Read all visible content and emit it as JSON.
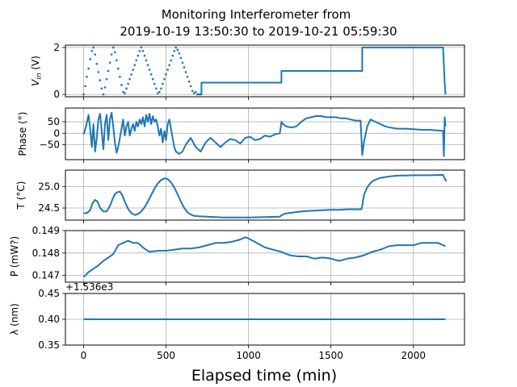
{
  "figure": {
    "title_line1": "Monitoring Interferometer from",
    "title_line2": "2019-10-19 13:50:30 to 2019-10-21 05:59:30",
    "xlabel": "Elapsed time (min)",
    "line_color": "#1f77b4",
    "grid_color": "#b0b0b0"
  },
  "chart_data": {
    "type": "line",
    "shared_x": {
      "xlim": [
        -110,
        2310
      ],
      "ticks": [
        0,
        500,
        1000,
        1500,
        2000
      ],
      "tick_labels": [
        "0",
        "500",
        "1000",
        "1500",
        "2000"
      ]
    },
    "grid": true,
    "panels": [
      {
        "id": "vin",
        "ylabel_main": "V",
        "ylabel_sub": "in",
        "ylabel_unit": " (V)",
        "ylim": [
          -0.1,
          2.1
        ],
        "yticks": [
          0,
          2
        ],
        "ytick_labels": [
          "0",
          "2"
        ],
        "style": "mixed",
        "segments": [
          {
            "style": "dots",
            "x": [
              0,
              10,
              20,
              30,
              40,
              50,
              60,
              70,
              80,
              90,
              100,
              110,
              120,
              130,
              140,
              150,
              160,
              170,
              180,
              190,
              200,
              210,
              220,
              230,
              240,
              250,
              260,
              270,
              280,
              290,
              300,
              310,
              320,
              330,
              340,
              350,
              360,
              370,
              380,
              390,
              400,
              410,
              420,
              430,
              440,
              450,
              460,
              470,
              480,
              490,
              500,
              510,
              520,
              530,
              540,
              550,
              560,
              570,
              580,
              590,
              600,
              610,
              620,
              630,
              640,
              650,
              660,
              670,
              680,
              690,
              700,
              710
            ],
            "y": [
              0,
              0.35,
              0.75,
              1.1,
              1.5,
              1.85,
              2.0,
              1.7,
              1.3,
              0.95,
              0.6,
              0.25,
              0.0,
              0.3,
              0.65,
              1.0,
              1.35,
              1.7,
              2.0,
              1.8,
              1.45,
              1.1,
              0.75,
              0.4,
              0.1,
              0.05,
              0.25,
              0.45,
              0.65,
              0.85,
              1.05,
              1.25,
              1.45,
              1.65,
              1.85,
              2.0,
              1.85,
              1.65,
              1.45,
              1.25,
              1.05,
              0.85,
              0.65,
              0.45,
              0.25,
              0.05,
              0.1,
              0.25,
              0.45,
              0.65,
              0.85,
              1.05,
              1.25,
              1.45,
              1.65,
              1.85,
              2.0,
              1.9,
              1.75,
              1.55,
              1.35,
              1.15,
              0.95,
              0.75,
              0.55,
              0.35,
              0.15,
              0.05,
              0.1,
              0.0,
              0.0,
              0.0
            ]
          },
          {
            "style": "line",
            "x": [
              710,
              715,
              715,
              1200,
              1200,
              1690,
              1690,
              2180,
              2190,
              2195
            ],
            "y": [
              0,
              0,
              0.5,
              0.5,
              1.0,
              1.0,
              2.0,
              2.0,
              0.5,
              0.0
            ]
          }
        ]
      },
      {
        "id": "phase",
        "ylabel": "Phase (°)",
        "ylim": [
          -115,
          110
        ],
        "yticks": [
          -50,
          0,
          50
        ],
        "ytick_labels": [
          "−50",
          "0",
          "50"
        ],
        "x": [
          0,
          15,
          30,
          40,
          50,
          60,
          70,
          80,
          90,
          100,
          110,
          120,
          130,
          140,
          150,
          160,
          170,
          180,
          190,
          200,
          210,
          220,
          230,
          240,
          250,
          260,
          270,
          280,
          290,
          300,
          310,
          320,
          330,
          340,
          350,
          360,
          370,
          380,
          390,
          400,
          410,
          420,
          430,
          440,
          450,
          460,
          470,
          480,
          490,
          500,
          510,
          520,
          530,
          540,
          550,
          560,
          580,
          600,
          620,
          650,
          680,
          710,
          740,
          770,
          800,
          830,
          860,
          890,
          920,
          950,
          980,
          1010,
          1040,
          1070,
          1100,
          1130,
          1160,
          1190,
          1200,
          1210,
          1230,
          1260,
          1290,
          1320,
          1350,
          1380,
          1410,
          1440,
          1470,
          1500,
          1530,
          1560,
          1590,
          1620,
          1650,
          1680,
          1690,
          1700,
          1720,
          1740,
          1770,
          1800,
          1830,
          1860,
          1900,
          1950,
          2000,
          2050,
          2100,
          2150,
          2180,
          2185,
          2190,
          2195
        ],
        "y": [
          -5,
          30,
          80,
          20,
          -60,
          40,
          -80,
          -20,
          60,
          85,
          10,
          -70,
          40,
          80,
          -30,
          60,
          90,
          30,
          -40,
          -85,
          -60,
          -20,
          20,
          60,
          -10,
          30,
          50,
          -10,
          20,
          40,
          10,
          50,
          30,
          60,
          40,
          70,
          30,
          80,
          50,
          85,
          40,
          75,
          50,
          60,
          30,
          -10,
          20,
          -40,
          10,
          -30,
          40,
          60,
          20,
          -20,
          -60,
          -80,
          -90,
          -80,
          -50,
          -20,
          -60,
          -80,
          -40,
          -20,
          -40,
          -60,
          -40,
          -25,
          -30,
          -45,
          -20,
          -15,
          -30,
          -25,
          -10,
          -15,
          -5,
          0,
          50,
          40,
          30,
          25,
          30,
          50,
          65,
          70,
          75,
          75,
          70,
          70,
          70,
          65,
          65,
          60,
          55,
          55,
          -95,
          -40,
          30,
          60,
          50,
          40,
          30,
          25,
          20,
          20,
          18,
          15,
          15,
          12,
          10,
          -100,
          70,
          30
        ]
      },
      {
        "id": "temp",
        "ylabel": "T (°C)",
        "ylim": [
          24.22,
          25.38
        ],
        "yticks": [
          24.5,
          25.0
        ],
        "ytick_labels": [
          "24.5",
          "25.0"
        ],
        "x": [
          0,
          20,
          40,
          55,
          70,
          85,
          100,
          120,
          140,
          160,
          175,
          190,
          205,
          220,
          235,
          250,
          270,
          290,
          310,
          330,
          350,
          370,
          390,
          410,
          430,
          450,
          470,
          490,
          510,
          530,
          550,
          570,
          590,
          610,
          630,
          650,
          670,
          700,
          750,
          800,
          850,
          900,
          1000,
          1100,
          1190,
          1200,
          1220,
          1260,
          1300,
          1350,
          1400,
          1450,
          1500,
          1550,
          1600,
          1650,
          1685,
          1690,
          1700,
          1720,
          1740,
          1760,
          1800,
          1850,
          1900,
          2000,
          2100,
          2180,
          2190,
          2200
        ],
        "y": [
          24.38,
          24.38,
          24.45,
          24.62,
          24.69,
          24.65,
          24.5,
          24.42,
          24.42,
          24.55,
          24.7,
          24.82,
          24.87,
          24.88,
          24.8,
          24.65,
          24.48,
          24.38,
          24.34,
          24.36,
          24.42,
          24.52,
          24.65,
          24.8,
          24.95,
          25.07,
          25.15,
          25.19,
          25.17,
          25.1,
          24.98,
          24.82,
          24.65,
          24.5,
          24.4,
          24.35,
          24.32,
          24.31,
          24.3,
          24.29,
          24.28,
          24.28,
          24.28,
          24.29,
          24.3,
          24.33,
          24.37,
          24.39,
          24.41,
          24.43,
          24.44,
          24.45,
          24.46,
          24.46,
          24.47,
          24.47,
          24.47,
          24.55,
          24.8,
          24.98,
          25.08,
          25.14,
          25.2,
          25.23,
          25.25,
          25.26,
          25.26,
          25.27,
          25.18,
          25.12
        ]
      },
      {
        "id": "power",
        "ylabel": "P (mW?)",
        "ylim": [
          0.1467,
          0.149
        ],
        "yticks": [
          0.147,
          0.148,
          0.149
        ],
        "ytick_labels": [
          "0.147",
          "0.148",
          "0.149"
        ],
        "x": [
          0,
          10,
          30,
          60,
          90,
          120,
          150,
          180,
          210,
          240,
          270,
          300,
          330,
          360,
          400,
          450,
          500,
          550,
          600,
          650,
          700,
          750,
          800,
          850,
          900,
          950,
          980,
          1000,
          1050,
          1100,
          1150,
          1200,
          1250,
          1300,
          1350,
          1400,
          1450,
          1500,
          1550,
          1600,
          1650,
          1700,
          1750,
          1800,
          1850,
          1900,
          1950,
          2000,
          2050,
          2100,
          2150,
          2180,
          2195
        ],
        "y": [
          0.14693,
          0.147,
          0.14715,
          0.1473,
          0.14745,
          0.14765,
          0.1478,
          0.14795,
          0.14835,
          0.14845,
          0.14855,
          0.14845,
          0.14845,
          0.14825,
          0.14805,
          0.1481,
          0.1481,
          0.14815,
          0.1482,
          0.1482,
          0.14825,
          0.14835,
          0.14845,
          0.14845,
          0.1485,
          0.1486,
          0.1487,
          0.14865,
          0.14845,
          0.14825,
          0.14815,
          0.14805,
          0.1479,
          0.14785,
          0.14785,
          0.14775,
          0.1478,
          0.14775,
          0.14765,
          0.14775,
          0.1478,
          0.1479,
          0.14805,
          0.14815,
          0.1483,
          0.14835,
          0.14835,
          0.14835,
          0.14845,
          0.14845,
          0.14845,
          0.14835,
          0.1483
        ]
      },
      {
        "id": "lambda",
        "ylabel": "λ (nm)",
        "offset_label": "+1.536e3",
        "ylim": [
          0.35,
          0.45
        ],
        "yticks": [
          0.35,
          0.4,
          0.45
        ],
        "ytick_labels": [
          "0.35",
          "0.40",
          "0.45"
        ],
        "x": [
          0,
          2195
        ],
        "y": [
          0.4,
          0.4
        ]
      }
    ]
  }
}
